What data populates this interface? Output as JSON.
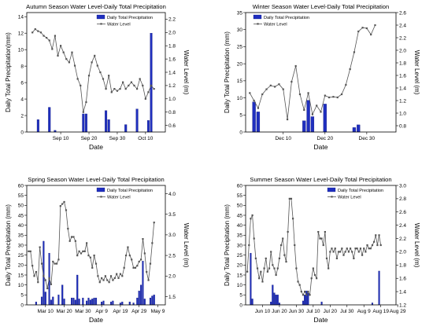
{
  "colors": {
    "bar": "#1f2fbf",
    "bar_edge": "#0b1270",
    "line": "#555555"
  },
  "chart_data": [
    {
      "type": "bar",
      "title": "Autumn Season Water Level-Daily Total Precipitation",
      "xlabel": "Date",
      "ylabel": "Daily Total Precipitation(mm)",
      "y2label": "Water Level (m)",
      "xlim": [
        0,
        49
      ],
      "ylim": [
        0,
        14.5
      ],
      "y2lim": [
        0.5,
        2.3
      ],
      "yticks": [
        0,
        2,
        4,
        6,
        8,
        10,
        12,
        14
      ],
      "y2ticks": [
        0.6,
        0.8,
        1.0,
        1.2,
        1.4,
        1.6,
        1.8,
        2.0,
        2.2
      ],
      "xticks": [
        {
          "x": 12,
          "label": "Sep 10"
        },
        {
          "x": 22,
          "label": "Sep 20"
        },
        {
          "x": 32,
          "label": "Sep 30"
        },
        {
          "x": 42,
          "label": "Oct 10"
        }
      ],
      "legend": [
        "Daily Total Precipitation",
        "Water Level"
      ],
      "legend_position": "top-right",
      "bars": [
        [
          4,
          1.5
        ],
        [
          8,
          3.0
        ],
        [
          10,
          0.2
        ],
        [
          20,
          2.2
        ],
        [
          21,
          2.2
        ],
        [
          28,
          2.6
        ],
        [
          29,
          1.5
        ],
        [
          35,
          0.9
        ],
        [
          39,
          2.8
        ],
        [
          43,
          1.4
        ],
        [
          44,
          12.0
        ]
      ],
      "line": [
        [
          2,
          2.0
        ],
        [
          3,
          2.05
        ],
        [
          4,
          2.02
        ],
        [
          5,
          2.0
        ],
        [
          6,
          1.95
        ],
        [
          7,
          1.92
        ],
        [
          8,
          1.88
        ],
        [
          9,
          1.75
        ],
        [
          10,
          1.95
        ],
        [
          11,
          1.65
        ],
        [
          12,
          1.8
        ],
        [
          13,
          1.7
        ],
        [
          14,
          1.6
        ],
        [
          15,
          1.55
        ],
        [
          16,
          1.7
        ],
        [
          17,
          1.5
        ],
        [
          18,
          1.3
        ],
        [
          19,
          1.2
        ],
        [
          20,
          0.8
        ],
        [
          21,
          0.95
        ],
        [
          22,
          1.35
        ],
        [
          23,
          1.55
        ],
        [
          24,
          1.65
        ],
        [
          25,
          1.5
        ],
        [
          26,
          1.4
        ],
        [
          27,
          1.3
        ],
        [
          28,
          1.15
        ],
        [
          29,
          1.35
        ],
        [
          30,
          1.1
        ],
        [
          31,
          1.15
        ],
        [
          32,
          1.12
        ],
        [
          33,
          1.15
        ],
        [
          34,
          1.25
        ],
        [
          35,
          1.15
        ],
        [
          36,
          1.2
        ],
        [
          37,
          1.25
        ],
        [
          38,
          1.2
        ],
        [
          39,
          1.15
        ],
        [
          40,
          1.3
        ],
        [
          41,
          1.2
        ],
        [
          42,
          1.0
        ],
        [
          43,
          1.1
        ],
        [
          44,
          1.2
        ],
        [
          45,
          1.15
        ]
      ]
    },
    {
      "type": "bar",
      "title": "Winter Season Water Level-Daily Total Precipitation",
      "xlabel": "Date",
      "ylabel": "Daily Total Precipitation (mm)",
      "y2label": "Water Level (m)",
      "xlim": [
        0,
        36
      ],
      "ylim": [
        0,
        35
      ],
      "y2lim": [
        0.7,
        2.6
      ],
      "yticks": [
        0,
        5,
        10,
        15,
        20,
        25,
        30,
        35
      ],
      "y2ticks": [
        0.8,
        1.0,
        1.2,
        1.4,
        1.6,
        1.8,
        2.0,
        2.2,
        2.4,
        2.6
      ],
      "xticks": [
        {
          "x": 9,
          "label": "Dec 10"
        },
        {
          "x": 19,
          "label": "Dec 20"
        },
        {
          "x": 29,
          "label": "Dec 30"
        }
      ],
      "legend": [
        "Daily Total Precipitation",
        "Water Level"
      ],
      "legend_position": "top-left",
      "bars": [
        [
          2,
          8.8
        ],
        [
          3,
          5.9
        ],
        [
          14,
          3.3
        ],
        [
          15,
          9.3
        ],
        [
          16,
          4.5
        ],
        [
          19,
          8.2
        ],
        [
          26,
          1.3
        ],
        [
          27,
          2.1
        ]
      ],
      "line": [
        [
          1,
          1.32
        ],
        [
          2,
          1.2
        ],
        [
          3,
          1.08
        ],
        [
          4,
          1.3
        ],
        [
          5,
          1.38
        ],
        [
          6,
          1.44
        ],
        [
          7,
          1.42
        ],
        [
          8,
          1.46
        ],
        [
          9,
          1.38
        ],
        [
          10,
          0.9
        ],
        [
          11,
          1.5
        ],
        [
          12,
          1.75
        ],
        [
          13,
          1.3
        ],
        [
          14,
          1.05
        ],
        [
          15,
          1.32
        ],
        [
          16,
          0.98
        ],
        [
          17,
          1.12
        ],
        [
          18,
          1.02
        ],
        [
          19,
          1.28
        ],
        [
          20,
          1.25
        ],
        [
          21,
          1.26
        ],
        [
          22,
          1.25
        ],
        [
          23,
          1.3
        ],
        [
          24,
          1.45
        ],
        [
          25,
          1.7
        ],
        [
          26,
          1.97
        ],
        [
          27,
          2.3
        ],
        [
          28,
          2.36
        ],
        [
          29,
          2.35
        ],
        [
          30,
          2.25
        ],
        [
          31,
          2.4
        ]
      ]
    },
    {
      "type": "bar",
      "title": "Spring Season Water Level-Daily Total Precipitation",
      "xlabel": "Date",
      "ylabel": "Daily Total Precipitation (mm)",
      "y2label": "Water Level (m)",
      "xlim": [
        0,
        74
      ],
      "ylim": [
        0,
        60
      ],
      "y2lim": [
        1.3,
        4.2
      ],
      "yticks": [
        0,
        5,
        10,
        15,
        20,
        25,
        30,
        35,
        40,
        45,
        50,
        55,
        60
      ],
      "y2ticks": [
        1.5,
        2.0,
        2.5,
        3.0,
        3.5,
        4.0
      ],
      "xticks": [
        {
          "x": 10,
          "label": "Mar 10"
        },
        {
          "x": 20,
          "label": "Mar 20"
        },
        {
          "x": 30,
          "label": "Mar 30"
        },
        {
          "x": 40,
          "label": "Apr 9"
        },
        {
          "x": 50,
          "label": "Apr 19"
        },
        {
          "x": 60,
          "label": "Apr 29"
        },
        {
          "x": 70,
          "label": "May 9"
        }
      ],
      "legend": [
        "Daily Total Precipitation",
        "Water Level"
      ],
      "legend_position": "top-right",
      "bars": [
        [
          5,
          1.5
        ],
        [
          8,
          4.0
        ],
        [
          9,
          32.0
        ],
        [
          10,
          6.5
        ],
        [
          12,
          26.0
        ],
        [
          13,
          2.5
        ],
        [
          14,
          4.0
        ],
        [
          17,
          5.0
        ],
        [
          19,
          10.0
        ],
        [
          20,
          3.0
        ],
        [
          24,
          3.5
        ],
        [
          25,
          3.5
        ],
        [
          26,
          2.5
        ],
        [
          27,
          15.0
        ],
        [
          28,
          3.0
        ],
        [
          30,
          3.5
        ],
        [
          32,
          2.0
        ],
        [
          33,
          3.5
        ],
        [
          34,
          2.5
        ],
        [
          35,
          3.0
        ],
        [
          36,
          3.5
        ],
        [
          37,
          3.5
        ],
        [
          40,
          1.5
        ],
        [
          41,
          2.0
        ],
        [
          45,
          1.5
        ],
        [
          46,
          2.0
        ],
        [
          50,
          1.0
        ],
        [
          51,
          1.5
        ],
        [
          55,
          1.5
        ],
        [
          57,
          1.0
        ],
        [
          59,
          3.5
        ],
        [
          60,
          7.0
        ],
        [
          61,
          10.0
        ],
        [
          62,
          22.0
        ],
        [
          63,
          3.0
        ],
        [
          66,
          3.5
        ],
        [
          67,
          4.5
        ],
        [
          68,
          5.0
        ]
      ],
      "line": [
        [
          1,
          2.6
        ],
        [
          2,
          2.6
        ],
        [
          3,
          2.25
        ],
        [
          4,
          2.0
        ],
        [
          5,
          2.1
        ],
        [
          6,
          1.85
        ],
        [
          7,
          2.7
        ],
        [
          8,
          2.3
        ],
        [
          9,
          2.0
        ],
        [
          10,
          1.9
        ],
        [
          11,
          1.7
        ],
        [
          12,
          1.95
        ],
        [
          13,
          1.8
        ],
        [
          14,
          2.35
        ],
        [
          15,
          2.3
        ],
        [
          16,
          2.3
        ],
        [
          17,
          2.4
        ],
        [
          18,
          3.7
        ],
        [
          19,
          3.75
        ],
        [
          20,
          3.8
        ],
        [
          21,
          3.6
        ],
        [
          22,
          3.15
        ],
        [
          23,
          2.85
        ],
        [
          24,
          2.95
        ],
        [
          25,
          2.95
        ],
        [
          26,
          2.85
        ],
        [
          27,
          2.5
        ],
        [
          28,
          2.6
        ],
        [
          29,
          2.55
        ],
        [
          30,
          2.6
        ],
        [
          31,
          2.6
        ],
        [
          32,
          2.8
        ],
        [
          33,
          2.5
        ],
        [
          34,
          2.45
        ],
        [
          35,
          2.2
        ],
        [
          36,
          2.5
        ],
        [
          37,
          2.3
        ],
        [
          38,
          2.0
        ],
        [
          39,
          1.85
        ],
        [
          40,
          1.95
        ],
        [
          41,
          1.9
        ],
        [
          42,
          2.0
        ],
        [
          43,
          1.9
        ],
        [
          44,
          1.85
        ],
        [
          45,
          2.0
        ],
        [
          46,
          1.9
        ],
        [
          47,
          1.95
        ],
        [
          48,
          2.05
        ],
        [
          49,
          1.95
        ],
        [
          50,
          2.05
        ],
        [
          51,
          2.0
        ],
        [
          52,
          2.2
        ],
        [
          53,
          2.5
        ],
        [
          54,
          2.7
        ],
        [
          55,
          2.5
        ],
        [
          56,
          2.4
        ],
        [
          57,
          2.2
        ],
        [
          58,
          2.2
        ],
        [
          59,
          2.25
        ],
        [
          60,
          2.35
        ],
        [
          61,
          2.4
        ],
        [
          62,
          2.9
        ],
        [
          63,
          2.55
        ],
        [
          64,
          2.1
        ],
        [
          65,
          1.9
        ],
        [
          66,
          2.3
        ],
        [
          67,
          2.8
        ],
        [
          68,
          3.3
        ]
      ]
    },
    {
      "type": "bar",
      "title": "Summer Season Water Level-Daily Total Precipitation",
      "xlabel": "Date",
      "ylabel": "Daily Total Precipitation (mm)",
      "y2label": "Water Level (m)",
      "xlim": [
        0,
        89
      ],
      "ylim": [
        0,
        60
      ],
      "y2lim": [
        1.2,
        3.0
      ],
      "yticks": [
        0,
        5,
        10,
        15,
        20,
        25,
        30,
        35,
        40,
        45,
        50,
        55,
        60
      ],
      "y2ticks": [
        1.2,
        1.4,
        1.6,
        1.8,
        2.0,
        2.2,
        2.4,
        2.6,
        2.8,
        3.0
      ],
      "xticks": [
        {
          "x": 10,
          "label": "Jun 10"
        },
        {
          "x": 20,
          "label": "Jun 20"
        },
        {
          "x": 30,
          "label": "Jun 30"
        },
        {
          "x": 40,
          "label": "Jul 10"
        },
        {
          "x": 50,
          "label": "Jul 20"
        },
        {
          "x": 60,
          "label": "Jul 30"
        },
        {
          "x": 70,
          "label": "Aug 9"
        },
        {
          "x": 80,
          "label": "Aug 19"
        },
        {
          "x": 90,
          "label": "Aug 29"
        }
      ],
      "legend": [
        "Daily Total Precipitation",
        "Water Level"
      ],
      "legend_position": "top-right",
      "bars": [
        [
          3,
          26.0
        ],
        [
          4,
          3.0
        ],
        [
          15,
          1.5
        ],
        [
          16,
          10.0
        ],
        [
          17,
          6.0
        ],
        [
          18,
          5.0
        ],
        [
          19,
          5.0
        ],
        [
          20,
          1.0
        ],
        [
          34,
          2.0
        ],
        [
          35,
          5.0
        ],
        [
          36,
          7.0
        ],
        [
          37,
          6.0
        ],
        [
          45,
          1.5
        ],
        [
          75,
          1.0
        ],
        [
          79,
          17.0
        ]
      ],
      "line": [
        [
          1,
          1.7
        ],
        [
          2,
          2.1
        ],
        [
          3,
          2.5
        ],
        [
          4,
          2.55
        ],
        [
          5,
          2.2
        ],
        [
          6,
          1.9
        ],
        [
          7,
          1.75
        ],
        [
          8,
          1.6
        ],
        [
          9,
          1.7
        ],
        [
          10,
          1.55
        ],
        [
          11,
          1.75
        ],
        [
          12,
          1.9
        ],
        [
          13,
          1.7
        ],
        [
          14,
          1.75
        ],
        [
          15,
          2.0
        ],
        [
          16,
          1.8
        ],
        [
          17,
          1.75
        ],
        [
          18,
          1.65
        ],
        [
          19,
          1.75
        ],
        [
          20,
          1.9
        ],
        [
          21,
          2.1
        ],
        [
          22,
          2.2
        ],
        [
          23,
          1.95
        ],
        [
          24,
          1.85
        ],
        [
          25,
          2.3
        ],
        [
          26,
          2.8
        ],
        [
          27,
          2.8
        ],
        [
          28,
          2.5
        ],
        [
          29,
          2.1
        ],
        [
          30,
          1.75
        ],
        [
          31,
          1.55
        ],
        [
          32,
          1.5
        ],
        [
          33,
          1.4
        ],
        [
          34,
          1.35
        ],
        [
          35,
          1.4
        ],
        [
          36,
          1.35
        ],
        [
          37,
          1.4
        ],
        [
          38,
          1.35
        ],
        [
          39,
          1.6
        ],
        [
          40,
          1.75
        ],
        [
          41,
          1.65
        ],
        [
          42,
          1.6
        ],
        [
          43,
          2.3
        ],
        [
          44,
          2.2
        ],
        [
          45,
          2.2
        ],
        [
          46,
          2.1
        ],
        [
          47,
          2.3
        ],
        [
          48,
          1.9
        ],
        [
          49,
          1.75
        ],
        [
          50,
          2.0
        ],
        [
          51,
          2.05
        ],
        [
          52,
          2.0
        ],
        [
          53,
          2.05
        ],
        [
          54,
          1.9
        ],
        [
          55,
          2.0
        ],
        [
          56,
          2.0
        ],
        [
          57,
          2.05
        ],
        [
          58,
          1.95
        ],
        [
          59,
          2.0
        ],
        [
          60,
          2.05
        ],
        [
          61,
          2.0
        ],
        [
          62,
          2.05
        ],
        [
          63,
          2.0
        ],
        [
          64,
          1.9
        ],
        [
          65,
          2.05
        ],
        [
          66,
          2.05
        ],
        [
          67,
          2.0
        ],
        [
          68,
          2.05
        ],
        [
          69,
          1.95
        ],
        [
          70,
          2.05
        ],
        [
          71,
          2.0
        ],
        [
          72,
          2.1
        ],
        [
          73,
          2.05
        ],
        [
          74,
          2.05
        ],
        [
          75,
          2.1
        ],
        [
          76,
          2.15
        ],
        [
          77,
          2.25
        ],
        [
          78,
          2.1
        ],
        [
          79,
          2.25
        ],
        [
          80,
          2.1
        ]
      ]
    }
  ]
}
